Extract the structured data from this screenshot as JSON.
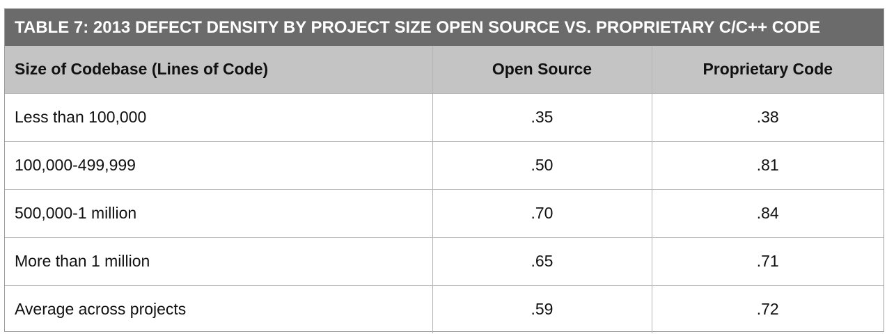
{
  "title": "TABLE 7: 2013 DEFECT DENSITY BY PROJECT SIZE OPEN SOURCE VS. PROPRIETARY C/C++ CODE",
  "columns": [
    "Size of Codebase (Lines of Code)",
    "Open Source",
    "Proprietary Code"
  ],
  "rows": [
    {
      "size": "Less than 100,000",
      "open_source": ".35",
      "proprietary": ".38"
    },
    {
      "size": "100,000-499,999",
      "open_source": ".50",
      "proprietary": ".81"
    },
    {
      "size": "500,000-1 million",
      "open_source": ".70",
      "proprietary": ".84"
    },
    {
      "size": "More than 1 million",
      "open_source": ".65",
      "proprietary": ".71"
    },
    {
      "size": "Average across projects",
      "open_source": ".59",
      "proprietary": ".72"
    }
  ]
}
